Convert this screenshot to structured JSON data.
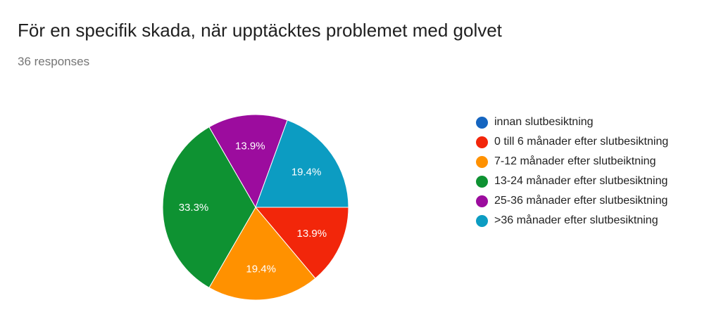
{
  "header": {
    "title": "För en specifik skada, när upptäcktes problemet med golvet",
    "responses": "36 responses"
  },
  "chart_data": {
    "type": "pie",
    "total_responses": 36,
    "slices": [
      {
        "label": "innan slutbesiktning",
        "value": 0,
        "percent": 0.0,
        "percent_label": "",
        "color": "#1565C0"
      },
      {
        "label": "0 till 6 månader efter slutbesiktning",
        "value": 5,
        "percent": 13.9,
        "percent_label": "13.9%",
        "color": "#F2260A"
      },
      {
        "label": "7-12 månader efter slutbeiktning",
        "value": 7,
        "percent": 19.4,
        "percent_label": "19.4%",
        "color": "#FF9100"
      },
      {
        "label": "13-24 månader efter slutbesiktning",
        "value": 12,
        "percent": 33.3,
        "percent_label": "33.3%",
        "color": "#0E9232"
      },
      {
        "label": "25-36 månader efter slutbesiktning",
        "value": 5,
        "percent": 13.9,
        "percent_label": "13.9%",
        "color": "#9C0C9E"
      },
      {
        "label": ">36 månader efter slutbesiktning",
        "value": 7,
        "percent": 19.4,
        "percent_label": "19.4%",
        "color": "#0C9CC2"
      }
    ],
    "legend_position": "right"
  }
}
